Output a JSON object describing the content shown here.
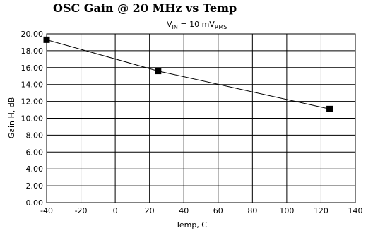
{
  "chart_data": {
    "type": "line",
    "title": "OSC Gain @ 20 MHz vs Temp",
    "subtitle": {
      "prefix": "V",
      "prefix_sub": "IN",
      "middle": " = 10 mV",
      "suffix_sub": "RMS"
    },
    "xlabel": "Temp, C",
    "ylabel": "Gain H, dB",
    "xlim": [
      -40,
      140
    ],
    "ylim": [
      0,
      20
    ],
    "x_ticks": [
      "-40",
      "-20",
      "0",
      "20",
      "40",
      "60",
      "80",
      "100",
      "120",
      "140"
    ],
    "y_ticks": [
      "0.00",
      "2.00",
      "4.00",
      "6.00",
      "8.00",
      "10.00",
      "12.00",
      "14.00",
      "16.00",
      "18.00",
      "20.00"
    ],
    "grid": true,
    "series": [
      {
        "x": [
          -40,
          25,
          125
        ],
        "y": [
          19.3,
          15.6,
          11.1
        ],
        "marker": "square",
        "color": "#000000"
      }
    ]
  }
}
